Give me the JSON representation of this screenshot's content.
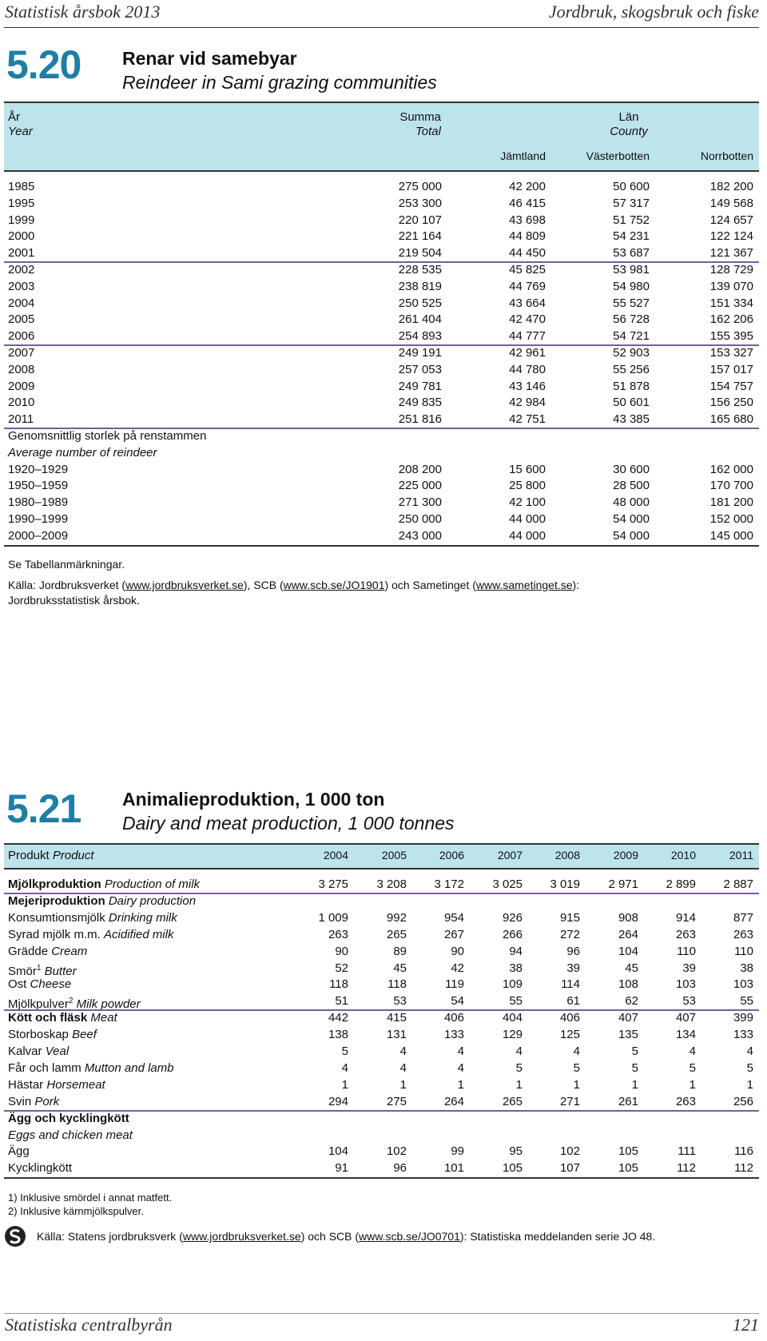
{
  "header": {
    "left": "Statistisk årsbok 2013",
    "right": "Jordbruk, skogsbruk och fiske"
  },
  "table1": {
    "number": "5.20",
    "title_sv": "Renar vid samebyar",
    "title_en": "Reindeer in Sami grazing communities",
    "head": {
      "year_sv": "År",
      "year_en": "Year",
      "total_sv": "Summa",
      "total_en": "Total",
      "county_sv": "Län",
      "county_en": "County",
      "cols": [
        "Jämtland",
        "Västerbotten",
        "Norrbotten"
      ]
    },
    "rows": [
      [
        "1985",
        "275 000",
        "42 200",
        "50 600",
        "182 200"
      ],
      [
        "1995",
        "253 300",
        "46 415",
        "57 317",
        "149 568"
      ],
      [
        "1999",
        "220 107",
        "43 698",
        "51 752",
        "124 657"
      ],
      [
        "2000",
        "221 164",
        "44 809",
        "54 231",
        "122 124"
      ],
      [
        "2001",
        "219 504",
        "44 450",
        "53 687",
        "121 367"
      ],
      [
        "2002",
        "228 535",
        "45 825",
        "53 981",
        "128 729"
      ],
      [
        "2003",
        "238 819",
        "44 769",
        "54 980",
        "139 070"
      ],
      [
        "2004",
        "250 525",
        "43 664",
        "55 527",
        "151 334"
      ],
      [
        "2005",
        "261 404",
        "42 470",
        "56 728",
        "162 206"
      ],
      [
        "2006",
        "254 893",
        "44 777",
        "54 721",
        "155 395"
      ],
      [
        "2007",
        "249 191",
        "42 961",
        "52 903",
        "153 327"
      ],
      [
        "2008",
        "257 053",
        "44 780",
        "55 256",
        "157 017"
      ],
      [
        "2009",
        "249 781",
        "43 146",
        "51 878",
        "154 757"
      ],
      [
        "2010",
        "249 835",
        "42 984",
        "50 601",
        "156 250"
      ],
      [
        "2011",
        "251 816",
        "42 751",
        "43 385",
        "165 680"
      ]
    ],
    "section_sv": "Genomsnittlig storlek på renstammen",
    "section_en": "Average number of reindeer",
    "rows2": [
      [
        "1920–1929",
        "208 200",
        "15 600",
        "30 600",
        "162 000"
      ],
      [
        "1950–1959",
        "225 000",
        "25 800",
        "28 500",
        "170 700"
      ],
      [
        "1980–1989",
        "271 300",
        "42 100",
        "48 000",
        "181 200"
      ],
      [
        "1990–1999",
        "250 000",
        "44 000",
        "54 000",
        "152 000"
      ],
      [
        "2000–2009",
        "243 000",
        "44 000",
        "54 000",
        "145 000"
      ]
    ],
    "note": "Se Tabellanmärkningar.",
    "source": [
      "Källa: Jordbruksverket (",
      "www.jordbruksverket.se",
      "), SCB (",
      "www.scb.se/JO1901",
      ") och Sametinget (",
      "www.sametinget.se",
      "):"
    ],
    "source2": "Jordbruksstatistisk årsbok."
  },
  "table2": {
    "number": "5.21",
    "title_sv": "Animalieproduktion, 1 000 ton",
    "title_en": "Dairy and meat production, 1 000 tonnes",
    "head_sv": "Produkt",
    "head_en": "Product",
    "years": [
      "2004",
      "2005",
      "2006",
      "2007",
      "2008",
      "2009",
      "2010",
      "2011"
    ],
    "rows": [
      {
        "sv": "Mjölkproduktion",
        "en": "Production of milk",
        "bold": true,
        "values": [
          "3 275",
          "3 208",
          "3 172",
          "3 025",
          "3 019",
          "2 971",
          "2 899",
          "2 887"
        ]
      },
      {
        "sv": "Mejeriproduktion",
        "en": "Dairy production",
        "bold": true
      },
      {
        "sv": "Konsumtionsmjölk",
        "en": "Drinking milk",
        "values": [
          "1 009",
          "992",
          "954",
          "926",
          "915",
          "908",
          "914",
          "877"
        ]
      },
      {
        "sv": "Syrad mjölk m.m.",
        "en": "Acidified milk",
        "values": [
          "263",
          "265",
          "267",
          "266",
          "272",
          "264",
          "263",
          "263"
        ]
      },
      {
        "sv": "Grädde",
        "en": "Cream",
        "values": [
          "90",
          "89",
          "90",
          "94",
          "96",
          "104",
          "110",
          "110"
        ]
      },
      {
        "sv": "Smör",
        "sup": "1",
        "en": "Butter",
        "values": [
          "52",
          "45",
          "42",
          "38",
          "39",
          "45",
          "39",
          "38"
        ]
      },
      {
        "sv": "Ost",
        "en": "Cheese",
        "values": [
          "118",
          "118",
          "119",
          "109",
          "114",
          "108",
          "103",
          "103"
        ]
      },
      {
        "sv": "Mjölkpulver",
        "sup": "2",
        "en": "Milk powder",
        "values": [
          "51",
          "53",
          "54",
          "55",
          "61",
          "62",
          "53",
          "55"
        ]
      },
      {
        "sv": "Kött och fläsk",
        "en": "Meat",
        "bold": true,
        "values": [
          "442",
          "415",
          "406",
          "404",
          "406",
          "407",
          "407",
          "399"
        ]
      },
      {
        "sv": "Storboskap",
        "en": "Beef",
        "values": [
          "138",
          "131",
          "133",
          "129",
          "125",
          "135",
          "134",
          "133"
        ]
      },
      {
        "sv": "Kalvar",
        "en": "Veal",
        "values": [
          "5",
          "4",
          "4",
          "4",
          "4",
          "5",
          "4",
          "4"
        ]
      },
      {
        "sv": "Får och lamm",
        "en": "Mutton and lamb",
        "values": [
          "4",
          "4",
          "4",
          "5",
          "5",
          "5",
          "5",
          "5"
        ]
      },
      {
        "sv": "Hästar",
        "en": "Horsemeat",
        "values": [
          "1",
          "1",
          "1",
          "1",
          "1",
          "1",
          "1",
          "1"
        ]
      },
      {
        "sv": "Svin",
        "en": "Pork",
        "values": [
          "294",
          "275",
          "264",
          "265",
          "271",
          "261",
          "263",
          "256"
        ]
      },
      {
        "sv": "Ägg och kycklingkött",
        "bold": true
      },
      {
        "en": "Eggs and chicken meat"
      },
      {
        "sv": "Ägg",
        "values": [
          "104",
          "102",
          "99",
          "95",
          "102",
          "105",
          "111",
          "116"
        ]
      },
      {
        "sv": "Kycklingkött",
        "values": [
          "91",
          "96",
          "101",
          "105",
          "107",
          "105",
          "112",
          "112"
        ]
      }
    ],
    "notes": [
      "1) Inklusive smördel i annat matfett.",
      "2) Inklusive kärnmjölkspulver."
    ],
    "source": [
      "Källa: Statens jordbruksverk (",
      "www.jordbruksverket.se",
      ") och SCB (",
      "www.scb.se/JO0701",
      "): Statistiska meddelanden serie JO 48."
    ]
  },
  "footer": {
    "left": "Statistiska centralbyrån",
    "right": "121"
  }
}
